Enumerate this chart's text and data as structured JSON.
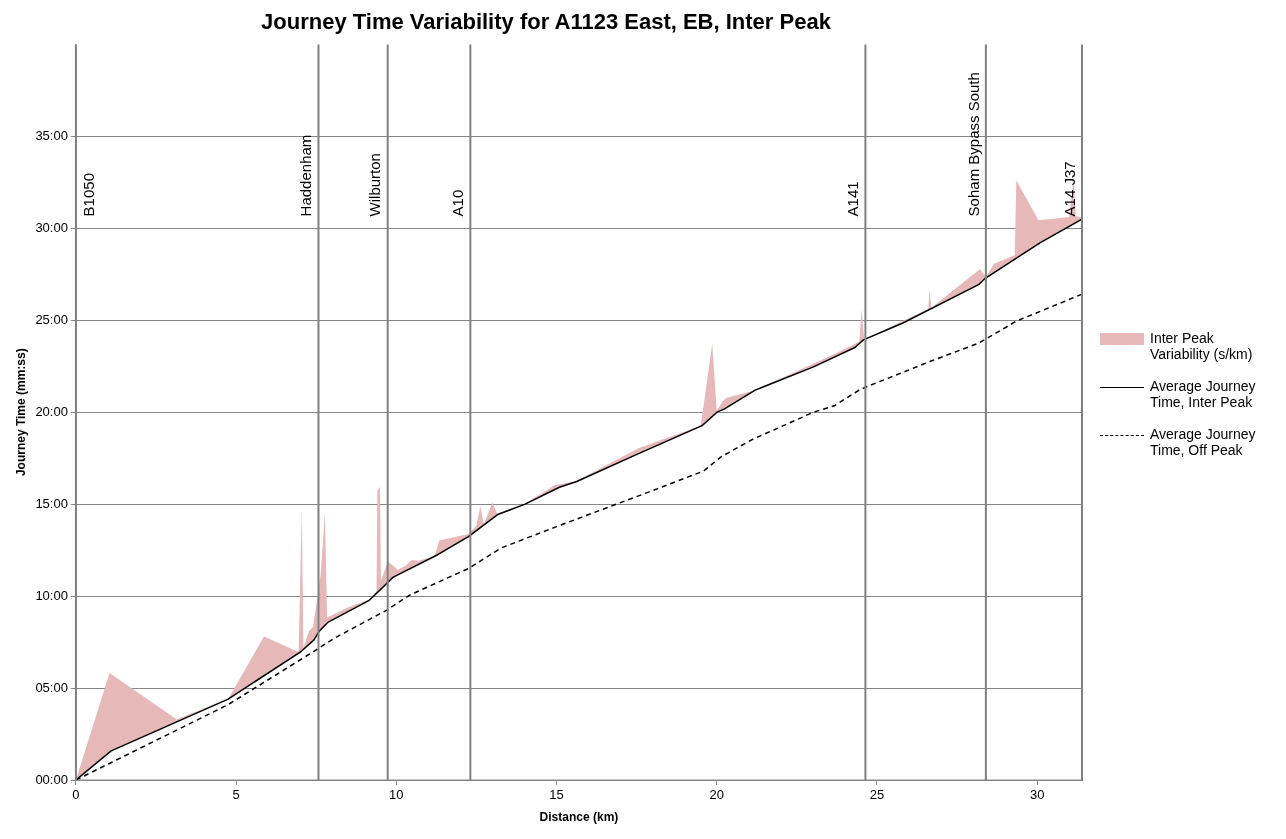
{
  "chart_data": {
    "type": "line",
    "title": "Journey Time Variability for A1123 East, EB, Inter Peak",
    "xlabel": "Distance (km)",
    "ylabel": "Journey Time (mm:ss)",
    "xlim": [
      0,
      31.4
    ],
    "xticks": [
      0,
      5,
      10,
      15,
      20,
      25,
      30
    ],
    "ylim": [
      0,
      2400
    ],
    "yticks": [
      {
        "value": 0,
        "label": "00:00"
      },
      {
        "value": 300,
        "label": "05:00"
      },
      {
        "value": 600,
        "label": "10:00"
      },
      {
        "value": 900,
        "label": "15:00"
      },
      {
        "value": 1200,
        "label": "20:00"
      },
      {
        "value": 1500,
        "label": "25:00"
      },
      {
        "value": 1800,
        "label": "30:00"
      },
      {
        "value": 2100,
        "label": "35:00"
      }
    ],
    "grid": "y",
    "legend": "right",
    "marker": "none",
    "series": [
      {
        "name": "Inter Peak Variability (s/km)",
        "type": "area",
        "color": "#e6b9b8",
        "x": [
          0,
          1.05,
          3.14,
          4.75,
          5.87,
          6.95,
          7.05,
          7.1,
          7.27,
          7.4,
          7.64,
          7.77,
          7.84,
          8.5,
          9.14,
          9.38,
          9.41,
          9.49,
          9.52,
          9.73,
          9.89,
          10.05,
          10.3,
          10.48,
          10.7,
          11.2,
          11.34,
          12.25,
          12.5,
          12.62,
          12.73,
          13.0,
          13.16,
          14.0,
          14.93,
          15.6,
          17.56,
          19.5,
          19.86,
          20.0,
          20.18,
          20.29,
          21.2,
          23.67,
          24.45,
          24.52,
          24.6,
          26.6,
          26.64,
          26.7,
          28.22,
          28.4,
          28.65,
          29.3,
          29.35,
          30.04,
          31.0,
          31.14,
          31.2,
          31.4
        ],
        "values": [
          0,
          349,
          198,
          264,
          468,
          418,
          888,
          430,
          485,
          500,
          672,
          871,
          530,
          564,
          588,
          615,
          945,
          956,
          650,
          713,
          700,
          686,
          700,
          718,
          715,
          732,
          781,
          803,
          830,
          894,
          835,
          905,
          866,
          900,
          962,
          975,
          1082,
          1156,
          1423,
          1205,
          1235,
          1246,
          1272,
          1390,
          1430,
          1536,
          1438,
          1537,
          1599,
          1541,
          1667,
          1640,
          1684,
          1712,
          1957,
          1826,
          1837,
          1963,
          1840,
          1835
        ]
      },
      {
        "name": "Average Journey Time, Inter Peak",
        "type": "line",
        "color": "#000000",
        "line_style": "solid",
        "x": [
          0,
          1.1,
          4.75,
          7.0,
          7.43,
          7.59,
          7.86,
          9.14,
          9.68,
          9.89,
          11.29,
          12.25,
          13.16,
          14.02,
          15.09,
          15.63,
          17.56,
          19.54,
          20.02,
          20.23,
          21.2,
          23.02,
          24.31,
          24.58,
          25.81,
          28.17,
          28.38,
          30.1,
          31.4
        ],
        "values": [
          0,
          95,
          264,
          417,
          457,
          485,
          514,
          585,
          639,
          661,
          735,
          794,
          866,
          900,
          955,
          974,
          1065,
          1156,
          1201,
          1210,
          1272,
          1348,
          1411,
          1436,
          1491,
          1616,
          1637,
          1753,
          1830
        ]
      },
      {
        "name": "Average Journey Time, Off Peak",
        "type": "line",
        "color": "#000000",
        "line_style": "dashed",
        "x": [
          0,
          4.75,
          7.43,
          8.07,
          9.68,
          10.43,
          12.25,
          13.27,
          14.98,
          17.56,
          19.59,
          20.13,
          21.09,
          23.02,
          23.67,
          24.41,
          24.63,
          26.67,
          28.17,
          29.35,
          31.4
        ],
        "values": [
          0,
          246,
          420,
          463,
          553,
          604,
          690,
          757,
          826,
          927,
          1008,
          1054,
          1110,
          1200,
          1221,
          1270,
          1281,
          1366,
          1425,
          1497,
          1585
        ]
      }
    ],
    "ref_lines": [
      {
        "axis": "x",
        "value": 0,
        "label": "B1050",
        "color": "#808080"
      },
      {
        "axis": "x",
        "value": 7.57,
        "label": "Haddenham",
        "color": "#808080"
      },
      {
        "axis": "x",
        "value": 9.73,
        "label": "Wilburton",
        "color": "#808080"
      },
      {
        "axis": "x",
        "value": 12.31,
        "label": "A10",
        "color": "#808080"
      },
      {
        "axis": "x",
        "value": 24.64,
        "label": "A141",
        "color": "#808080"
      },
      {
        "axis": "x",
        "value": 28.4,
        "label": "Soham Bypass South",
        "color": "#808080"
      },
      {
        "axis": "x",
        "value": 31.4,
        "label": "A14 J37",
        "color": "#808080"
      }
    ]
  }
}
